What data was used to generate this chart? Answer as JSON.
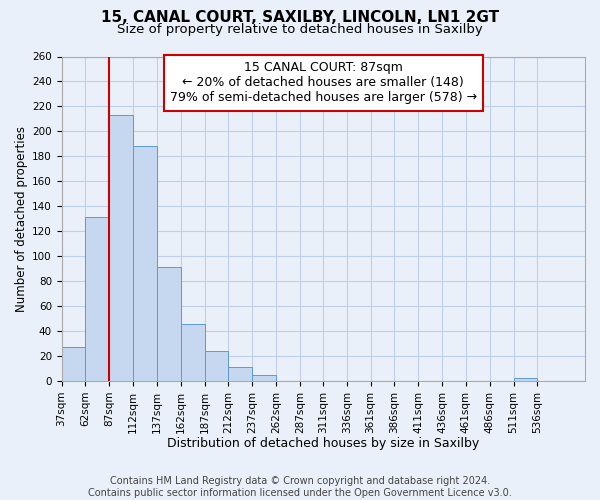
{
  "title": "15, CANAL COURT, SAXILBY, LINCOLN, LN1 2GT",
  "subtitle": "Size of property relative to detached houses in Saxilby",
  "xlabel": "Distribution of detached houses by size in Saxilby",
  "ylabel": "Number of detached properties",
  "bar_edges": [
    37,
    62,
    87,
    112,
    137,
    162,
    187,
    212,
    237,
    262,
    287,
    311,
    336,
    361,
    386,
    411,
    436,
    461,
    486,
    511,
    536,
    561
  ],
  "bar_heights": [
    27,
    131,
    213,
    188,
    91,
    46,
    24,
    11,
    5,
    0,
    0,
    0,
    0,
    0,
    0,
    0,
    0,
    0,
    0,
    2,
    0
  ],
  "bar_color": "#c5d8f0",
  "bar_edge_color": "#5b9bd5",
  "grid_color": "#c0d0e8",
  "background_color": "#eaf0f9",
  "plot_bg_color": "#eaf0f9",
  "vline_x": 87,
  "vline_color": "#cc0000",
  "annotation_title": "15 CANAL COURT: 87sqm",
  "annotation_line1": "← 20% of detached houses are smaller (148)",
  "annotation_line2": "79% of semi-detached houses are larger (578) →",
  "annotation_box_color": "#ffffff",
  "annotation_border_color": "#cc0000",
  "ylim": [
    0,
    260
  ],
  "yticks": [
    0,
    20,
    40,
    60,
    80,
    100,
    120,
    140,
    160,
    180,
    200,
    220,
    240,
    260
  ],
  "xtick_labels": [
    "37sqm",
    "62sqm",
    "87sqm",
    "112sqm",
    "137sqm",
    "162sqm",
    "187sqm",
    "212sqm",
    "237sqm",
    "262sqm",
    "287sqm",
    "311sqm",
    "336sqm",
    "361sqm",
    "386sqm",
    "411sqm",
    "436sqm",
    "461sqm",
    "486sqm",
    "511sqm",
    "536sqm"
  ],
  "footer_line1": "Contains HM Land Registry data © Crown copyright and database right 2024.",
  "footer_line2": "Contains public sector information licensed under the Open Government Licence v3.0.",
  "title_fontsize": 11,
  "subtitle_fontsize": 9.5,
  "xlabel_fontsize": 9,
  "ylabel_fontsize": 8.5,
  "tick_fontsize": 7.5,
  "footer_fontsize": 7,
  "annotation_fontsize": 9
}
